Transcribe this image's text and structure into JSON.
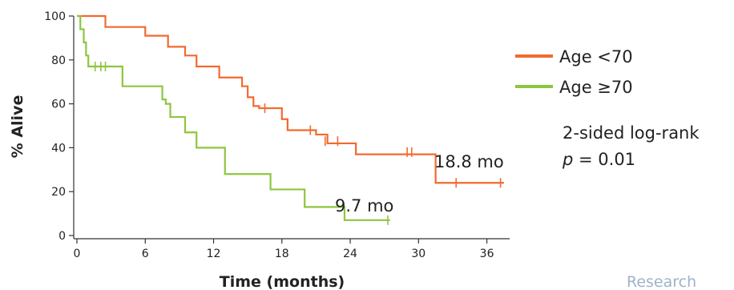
{
  "chart_data": {
    "type": "line",
    "step": true,
    "xlabel": "Time (months)",
    "ylabel": "% Alive",
    "xlim": [
      0,
      38
    ],
    "ylim": [
      0,
      100
    ],
    "xticks": [
      0,
      6,
      12,
      18,
      24,
      30,
      36
    ],
    "yticks": [
      0,
      20,
      40,
      60,
      80,
      100
    ],
    "grid": false,
    "legend_position": "right",
    "series": [
      {
        "name": "Age <70",
        "color": "#f26a2e",
        "x": [
          0,
          2.5,
          6,
          8,
          9.5,
          10.5,
          12.5,
          14.5,
          15,
          15.5,
          16,
          18,
          18.5,
          21,
          22,
          24.5,
          31.5,
          37.5
        ],
        "y": [
          100,
          95,
          91,
          86,
          82,
          77,
          72,
          68,
          63,
          59,
          58,
          53,
          48,
          46,
          42,
          37,
          24,
          24
        ],
        "censored": [
          [
            16.5,
            58
          ],
          [
            20.5,
            48
          ],
          [
            21.8,
            43
          ],
          [
            22.9,
            43
          ],
          [
            29,
            38
          ],
          [
            29.4,
            38
          ],
          [
            33.3,
            24
          ],
          [
            37.2,
            24
          ]
        ],
        "median_label": "18.8 mo"
      },
      {
        "name": "Age ≥70",
        "color": "#8dc63f",
        "x": [
          0,
          0.3,
          0.6,
          0.8,
          1,
          4,
          7.5,
          7.8,
          8.2,
          9.5,
          10.5,
          13,
          17,
          20,
          23.5,
          27.5
        ],
        "y": [
          100,
          94,
          88,
          82,
          77,
          68,
          62,
          60,
          54,
          47,
          40,
          28,
          21,
          13,
          7,
          7
        ],
        "censored": [
          [
            1.6,
            77
          ],
          [
            2.1,
            77
          ],
          [
            2.5,
            77
          ],
          [
            27.3,
            7
          ]
        ],
        "median_label": "9.7 mo"
      }
    ],
    "annotation": {
      "line1": "2-sided log-rank",
      "line2_p": "p",
      "line2_rest": " = 0.01"
    }
  },
  "watermark": "Research"
}
